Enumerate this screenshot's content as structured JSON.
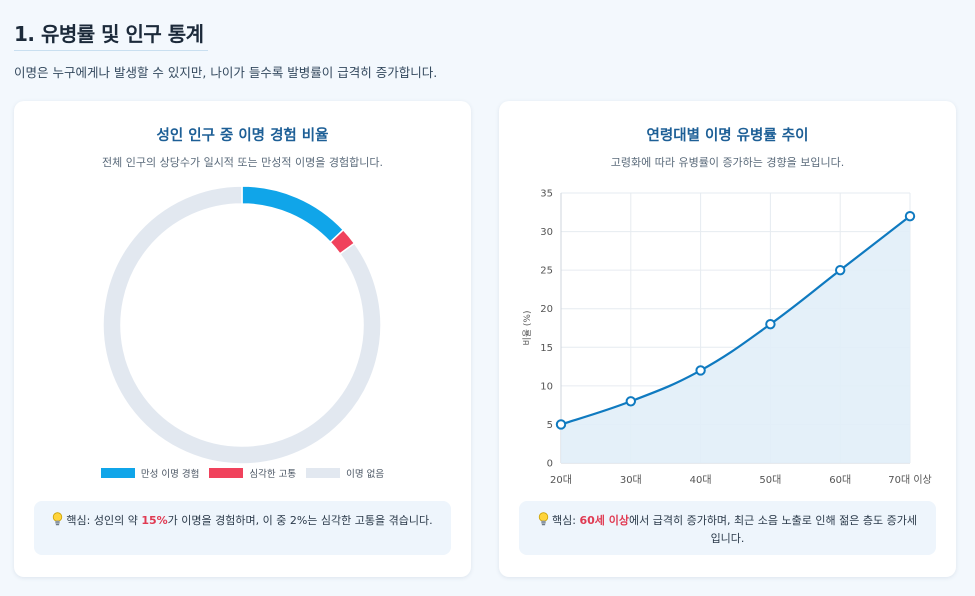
{
  "page": {
    "title": "1. 유병률 및 인구 통계",
    "description": "이명은 누구에게나 발생할 수 있지만, 나이가 들수록 발병률이 급격히 증가합니다."
  },
  "left_card": {
    "title": "성인 인구 중 이명 경험 비율",
    "subtitle": "전체 인구의 상당수가 일시적 또는 만성적 이명을 경험합니다.",
    "insight": {
      "prefix": "핵심: 성인의 약 ",
      "highlight": "15%",
      "suffix": "가 이명을 경험하며, 이 중 2%는 심각한 고통을 겪습니다."
    }
  },
  "right_card": {
    "title": "연령대별 이명 유병률 추이",
    "subtitle": "고령화에 따라 유병률이 증가하는 경향을 보입니다.",
    "insight": {
      "prefix": "핵심: ",
      "highlight": "60세 이상",
      "suffix": "에서 급격히 증가하며, 최근 소음 노출로 인해 젊은 층도 증가세입니다."
    }
  },
  "colors": {
    "chronic": "#10a5e9",
    "severe": "#f0425c",
    "none": "#e2e8f0",
    "line": "#0f7ac0",
    "area": "#e1eef8"
  },
  "chart_data": [
    {
      "type": "pie",
      "variant": "doughnut",
      "labels": [
        "만성 이명 경험",
        "심각한 고통",
        "이명 없음"
      ],
      "values": [
        13,
        2,
        85
      ],
      "legend": "bottom"
    },
    {
      "type": "area",
      "categories": [
        "20대",
        "30대",
        "40대",
        "50대",
        "60대",
        "70대 이상"
      ],
      "series": [
        {
          "name": "비율 (%)",
          "values": [
            5,
            8,
            12,
            18,
            25,
            32
          ]
        }
      ],
      "ylabel": "비율 (%)",
      "xlabel": "",
      "ylim": [
        0,
        35
      ],
      "yticks": [
        0,
        5,
        10,
        15,
        20,
        25,
        30,
        35
      ],
      "grid": true
    }
  ]
}
